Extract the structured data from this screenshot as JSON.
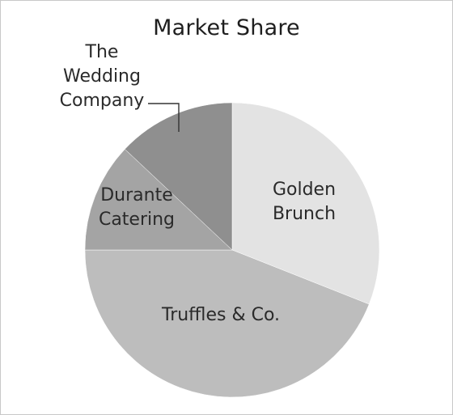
{
  "chart_data": {
    "type": "pie",
    "title": "Market Share",
    "slices": [
      {
        "label": "Golden Brunch",
        "value": 31,
        "color": "#e3e3e3"
      },
      {
        "label": "Truffles & Co.",
        "value": 44,
        "color": "#bdbdbd"
      },
      {
        "label": "Durante Catering",
        "value": 12,
        "color": "#a4a4a4"
      },
      {
        "label": "The Wedding Company",
        "value": 13,
        "color": "#8f8f8f"
      }
    ],
    "label_lines": [
      [
        "Golden",
        "Brunch"
      ],
      [
        "Truffles & Co."
      ],
      [
        "Durante",
        "Catering"
      ],
      [
        "The",
        "Wedding",
        "Company"
      ]
    ],
    "start_angle_deg": -90,
    "direction": "clockwise"
  }
}
